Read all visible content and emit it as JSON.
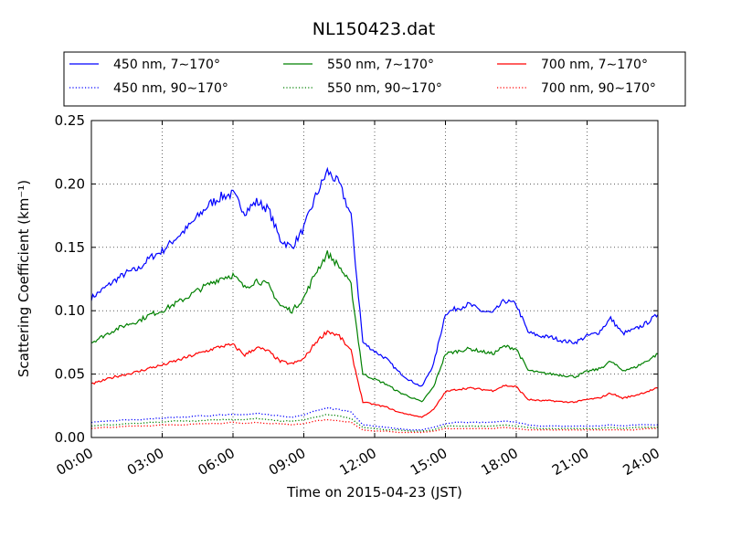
{
  "chart_data": {
    "type": "line",
    "title": "NL150423.dat",
    "xlabel": "Time on 2015-04-23 (JST)",
    "ylabel": "Scattering Coefficient (km⁻¹)",
    "ylim": [
      0,
      0.25
    ],
    "xlim": [
      0,
      24
    ],
    "x_ticks": [
      "00:00",
      "03:00",
      "06:00",
      "09:00",
      "12:00",
      "15:00",
      "18:00",
      "21:00",
      "24:00"
    ],
    "y_ticks": [
      "0.00",
      "0.05",
      "0.10",
      "0.15",
      "0.20",
      "0.25"
    ],
    "grid": true,
    "legend_position": "top",
    "x": [
      0,
      0.5,
      1,
      1.5,
      2,
      2.5,
      3,
      3.5,
      4,
      4.5,
      5,
      5.5,
      6,
      6.5,
      7,
      7.5,
      8,
      8.5,
      9,
      9.5,
      10,
      10.5,
      11,
      11.5,
      12,
      12.5,
      13,
      13.5,
      14,
      14.5,
      15,
      15.5,
      16,
      16.5,
      17,
      17.5,
      18,
      18.5,
      19,
      19.5,
      20,
      20.5,
      21,
      21.5,
      22,
      22.5,
      23,
      23.5,
      24
    ],
    "series": [
      {
        "name": "450 nm, 7∼170°",
        "color": "#0000ff",
        "style": "solid",
        "values": [
          0.11,
          0.117,
          0.124,
          0.13,
          0.133,
          0.142,
          0.147,
          0.156,
          0.164,
          0.174,
          0.184,
          0.19,
          0.192,
          0.178,
          0.186,
          0.18,
          0.156,
          0.15,
          0.165,
          0.19,
          0.21,
          0.2,
          0.175,
          0.075,
          0.068,
          0.062,
          0.052,
          0.045,
          0.04,
          0.058,
          0.098,
          0.102,
          0.105,
          0.1,
          0.098,
          0.108,
          0.105,
          0.083,
          0.08,
          0.079,
          0.076,
          0.075,
          0.08,
          0.083,
          0.094,
          0.082,
          0.085,
          0.09,
          0.097
        ]
      },
      {
        "name": "450 nm, 90∼170°",
        "color": "#0000ff",
        "style": "dotted",
        "values": [
          0.012,
          0.013,
          0.013,
          0.014,
          0.014,
          0.015,
          0.015,
          0.016,
          0.016,
          0.017,
          0.017,
          0.018,
          0.018,
          0.018,
          0.019,
          0.018,
          0.017,
          0.016,
          0.018,
          0.021,
          0.023,
          0.022,
          0.02,
          0.01,
          0.009,
          0.008,
          0.007,
          0.006,
          0.006,
          0.008,
          0.011,
          0.012,
          0.012,
          0.012,
          0.012,
          0.013,
          0.012,
          0.01,
          0.009,
          0.009,
          0.009,
          0.009,
          0.009,
          0.009,
          0.01,
          0.009,
          0.01,
          0.01,
          0.01
        ]
      },
      {
        "name": "550 nm, 7∼170°",
        "color": "#008000",
        "style": "solid",
        "values": [
          0.075,
          0.08,
          0.085,
          0.089,
          0.092,
          0.097,
          0.1,
          0.105,
          0.11,
          0.116,
          0.121,
          0.126,
          0.128,
          0.118,
          0.124,
          0.12,
          0.104,
          0.1,
          0.11,
          0.13,
          0.145,
          0.135,
          0.12,
          0.05,
          0.046,
          0.042,
          0.036,
          0.032,
          0.028,
          0.04,
          0.066,
          0.068,
          0.07,
          0.068,
          0.066,
          0.072,
          0.07,
          0.053,
          0.051,
          0.05,
          0.049,
          0.048,
          0.052,
          0.054,
          0.06,
          0.053,
          0.055,
          0.06,
          0.066
        ]
      },
      {
        "name": "550 nm, 90∼170°",
        "color": "#008000",
        "style": "dotted",
        "values": [
          0.009,
          0.01,
          0.01,
          0.011,
          0.011,
          0.012,
          0.012,
          0.013,
          0.013,
          0.013,
          0.014,
          0.014,
          0.014,
          0.014,
          0.015,
          0.014,
          0.013,
          0.013,
          0.014,
          0.016,
          0.018,
          0.017,
          0.015,
          0.008,
          0.007,
          0.006,
          0.006,
          0.005,
          0.005,
          0.006,
          0.009,
          0.009,
          0.009,
          0.009,
          0.009,
          0.01,
          0.009,
          0.008,
          0.007,
          0.007,
          0.007,
          0.007,
          0.007,
          0.007,
          0.008,
          0.007,
          0.008,
          0.008,
          0.008
        ]
      },
      {
        "name": "700 nm, 7∼170°",
        "color": "#ff0000",
        "style": "solid",
        "values": [
          0.042,
          0.045,
          0.048,
          0.05,
          0.052,
          0.055,
          0.057,
          0.06,
          0.063,
          0.066,
          0.069,
          0.072,
          0.073,
          0.065,
          0.071,
          0.068,
          0.06,
          0.058,
          0.062,
          0.075,
          0.084,
          0.08,
          0.068,
          0.028,
          0.026,
          0.024,
          0.02,
          0.018,
          0.016,
          0.022,
          0.036,
          0.038,
          0.039,
          0.038,
          0.037,
          0.041,
          0.04,
          0.03,
          0.029,
          0.029,
          0.028,
          0.028,
          0.03,
          0.031,
          0.035,
          0.031,
          0.033,
          0.036,
          0.039
        ]
      },
      {
        "name": "700 nm, 90∼170°",
        "color": "#ff0000",
        "style": "dotted",
        "values": [
          0.007,
          0.008,
          0.008,
          0.009,
          0.009,
          0.009,
          0.01,
          0.01,
          0.01,
          0.011,
          0.011,
          0.011,
          0.012,
          0.011,
          0.012,
          0.011,
          0.011,
          0.01,
          0.011,
          0.013,
          0.014,
          0.013,
          0.012,
          0.006,
          0.005,
          0.005,
          0.004,
          0.004,
          0.004,
          0.005,
          0.007,
          0.007,
          0.007,
          0.007,
          0.007,
          0.008,
          0.007,
          0.006,
          0.006,
          0.006,
          0.006,
          0.006,
          0.006,
          0.006,
          0.006,
          0.006,
          0.006,
          0.007,
          0.007
        ]
      }
    ]
  }
}
